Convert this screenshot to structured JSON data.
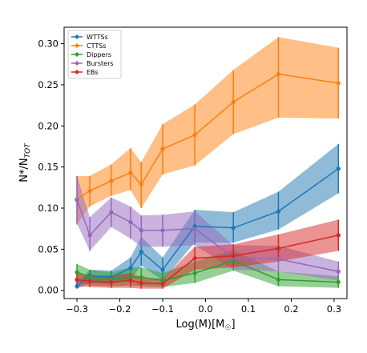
{
  "chart_data": {
    "type": "line",
    "title": "",
    "xlabel": "Log(M)[M",
    "xlabel_sub": "☉",
    "xlabel_close": "]",
    "ylabel": "N*/N",
    "ylabel_sub": "TOT",
    "xlim": [
      -0.33,
      0.33
    ],
    "ylim": [
      -0.01,
      0.32
    ],
    "xticks": [
      -0.3,
      -0.2,
      -0.1,
      0.0,
      0.1,
      0.2,
      0.3
    ],
    "xtick_labels": [
      "−0.3",
      "−0.2",
      "−0.1",
      "0.0",
      "0.1",
      "0.2",
      "0.3"
    ],
    "yticks": [
      0.0,
      0.05,
      0.1,
      0.15,
      0.2,
      0.25,
      0.3
    ],
    "ytick_labels": [
      "0.00",
      "0.05",
      "0.10",
      "0.15",
      "0.20",
      "0.25",
      "0.30"
    ],
    "grid": false,
    "legend_position": "top-left",
    "x": [
      -0.3,
      -0.27,
      -0.22,
      -0.175,
      -0.15,
      -0.1,
      -0.025,
      0.065,
      0.17,
      0.31
    ],
    "series": [
      {
        "name": "WTTSs",
        "color": "#1f77b4",
        "values": [
          0.005,
          0.018,
          0.016,
          0.027,
          0.047,
          0.025,
          0.078,
          0.076,
          0.096,
          0.148
        ],
        "lower": [
          0.002,
          0.009,
          0.008,
          0.013,
          0.03,
          0.012,
          0.058,
          0.058,
          0.074,
          0.118
        ],
        "upper": [
          0.01,
          0.025,
          0.024,
          0.04,
          0.065,
          0.04,
          0.098,
          0.095,
          0.12,
          0.178
        ]
      },
      {
        "name": "CTTSs",
        "color": "#ff7f0e",
        "values": [
          0.111,
          0.121,
          0.133,
          0.143,
          0.129,
          0.172,
          0.189,
          0.229,
          0.263,
          0.252
        ],
        "lower": [
          0.08,
          0.102,
          0.115,
          0.122,
          0.1,
          0.141,
          0.152,
          0.19,
          0.21,
          0.209
        ],
        "upper": [
          0.139,
          0.139,
          0.153,
          0.173,
          0.156,
          0.202,
          0.226,
          0.268,
          0.308,
          0.295
        ]
      },
      {
        "name": "Dippers",
        "color": "#2ca02c",
        "values": [
          0.022,
          0.016,
          0.013,
          0.016,
          0.016,
          0.012,
          0.021,
          0.036,
          0.013,
          0.01
        ],
        "lower": [
          0.011,
          0.006,
          0.005,
          0.006,
          0.005,
          0.004,
          0.009,
          0.024,
          0.005,
          0.003
        ],
        "upper": [
          0.032,
          0.025,
          0.022,
          0.028,
          0.028,
          0.021,
          0.035,
          0.049,
          0.023,
          0.017
        ]
      },
      {
        "name": "Bursters",
        "color": "#9467bd",
        "values": [
          0.11,
          0.067,
          0.095,
          0.083,
          0.073,
          0.073,
          0.075,
          0.04,
          0.038,
          0.023
        ],
        "lower": [
          0.081,
          0.048,
          0.077,
          0.063,
          0.053,
          0.053,
          0.055,
          0.025,
          0.023,
          0.012
        ],
        "upper": [
          0.139,
          0.089,
          0.113,
          0.102,
          0.091,
          0.092,
          0.096,
          0.055,
          0.054,
          0.035
        ]
      },
      {
        "name": "EBs",
        "color": "#d62728",
        "values": [
          0.013,
          0.011,
          0.01,
          0.012,
          0.009,
          0.008,
          0.039,
          0.042,
          0.051,
          0.067
        ],
        "lower": [
          0.005,
          0.004,
          0.003,
          0.003,
          0.002,
          0.002,
          0.025,
          0.028,
          0.035,
          0.048
        ],
        "upper": [
          0.022,
          0.018,
          0.018,
          0.021,
          0.016,
          0.014,
          0.053,
          0.056,
          0.068,
          0.086
        ]
      }
    ]
  }
}
